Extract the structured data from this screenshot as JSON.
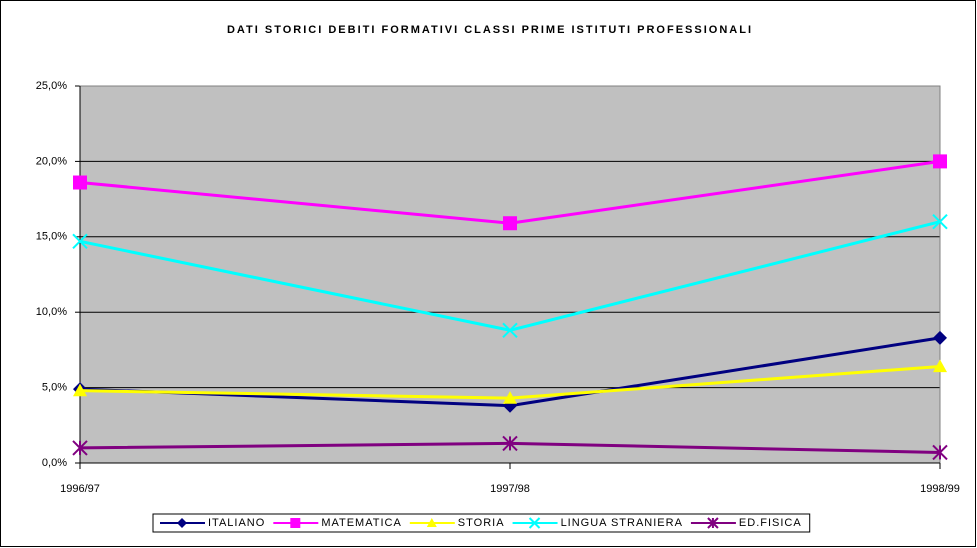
{
  "chart_data": {
    "type": "line",
    "title": "DATI STORICI DEBITI FORMATIVI CLASSI PRIME ISTITUTI PROFESSIONALI",
    "categories": [
      "1996/97",
      "1997/98",
      "1998/99"
    ],
    "series": [
      {
        "name": "ITALIANO",
        "color": "#000080",
        "marker": "diamond",
        "values": [
          4.9,
          3.8,
          8.3
        ]
      },
      {
        "name": "MATEMATICA",
        "color": "#ff00ff",
        "marker": "square",
        "values": [
          18.6,
          15.9,
          20.0
        ]
      },
      {
        "name": "STORIA",
        "color": "#ffff00",
        "marker": "triangle",
        "values": [
          4.8,
          4.3,
          6.4
        ]
      },
      {
        "name": "LINGUA STRANIERA",
        "color": "#00ffff",
        "marker": "x",
        "values": [
          14.7,
          8.8,
          16.0
        ]
      },
      {
        "name": "ED.FISICA",
        "color": "#800080",
        "marker": "star",
        "values": [
          1.0,
          1.3,
          0.7
        ]
      }
    ],
    "ylim": [
      0,
      25
    ],
    "yticks": [
      {
        "value": 0,
        "label": "0,0%"
      },
      {
        "value": 5,
        "label": "5,0%"
      },
      {
        "value": 10,
        "label": "10,0%"
      },
      {
        "value": 15,
        "label": "15,0%"
      },
      {
        "value": 20,
        "label": "20,0%"
      },
      {
        "value": 25,
        "label": "25,0%"
      }
    ],
    "grid": true,
    "legend": "bottom"
  }
}
